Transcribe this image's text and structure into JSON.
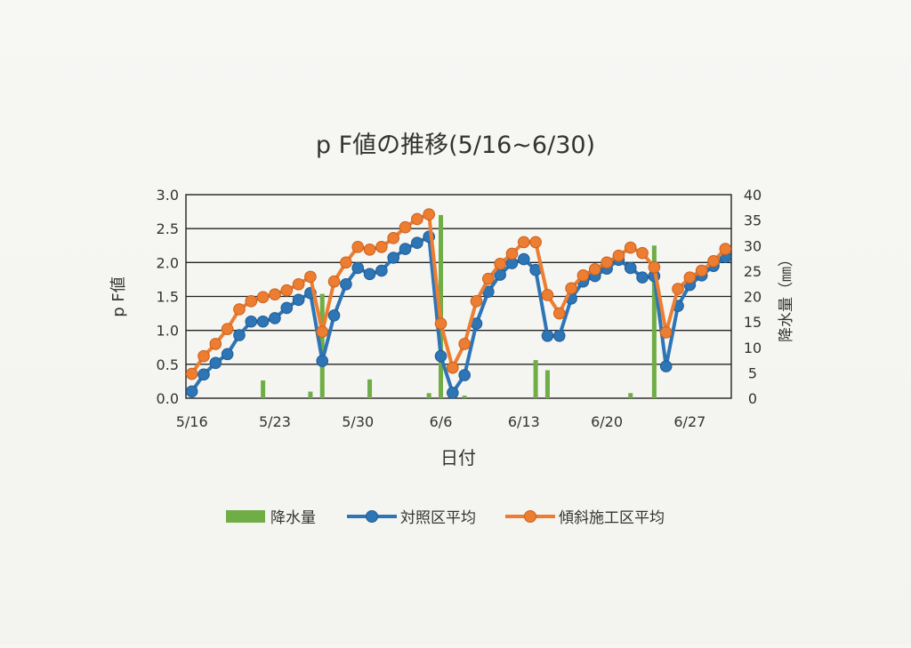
{
  "chart_data": {
    "type": "bar+line",
    "title": "p F値の推移(5/16~6/30)",
    "xlabel": "日付",
    "ylabel_left": "p F値",
    "ylabel_right": "降水量（㎜）",
    "ylim_left": [
      0,
      3.0
    ],
    "ylim_right": [
      0,
      40
    ],
    "yticks_left": [
      "0.0",
      "0.5",
      "1.0",
      "1.5",
      "2.0",
      "2.5",
      "3.0"
    ],
    "yticks_right": [
      "0",
      "5",
      "10",
      "15",
      "20",
      "25",
      "30",
      "35",
      "40"
    ],
    "x_tick_labels": [
      "5/16",
      "5/23",
      "5/30",
      "6/6",
      "6/13",
      "6/20",
      "6/27"
    ],
    "dates": [
      "5/16",
      "5/17",
      "5/18",
      "5/19",
      "5/20",
      "5/21",
      "5/22",
      "5/23",
      "5/24",
      "5/25",
      "5/26",
      "5/27",
      "5/28",
      "5/29",
      "5/30",
      "5/31",
      "6/1",
      "6/2",
      "6/3",
      "6/4",
      "6/5",
      "6/6",
      "6/7",
      "6/8",
      "6/9",
      "6/10",
      "6/11",
      "6/12",
      "6/13",
      "6/14",
      "6/15",
      "6/16",
      "6/17",
      "6/18",
      "6/19",
      "6/20",
      "6/21",
      "6/22",
      "6/23",
      "6/24",
      "6/25",
      "6/26",
      "6/27",
      "6/28",
      "6/29",
      "6/30"
    ],
    "grid": true,
    "legend_position": "bottom",
    "series": [
      {
        "name": "降水量",
        "type": "bar",
        "axis": "right",
        "color": "#70ad47",
        "values": [
          0,
          0,
          0,
          0,
          0,
          0,
          3.5,
          0,
          0,
          0,
          1.3,
          20.5,
          0,
          0,
          0,
          3.7,
          0,
          0,
          0,
          0,
          1,
          36,
          0,
          0.5,
          0,
          0,
          0,
          0,
          0,
          7.5,
          5.5,
          0,
          0,
          0,
          0,
          0,
          0,
          1,
          0,
          30,
          0,
          0,
          0,
          0,
          0,
          0
        ]
      },
      {
        "name": "対照区平均",
        "type": "line",
        "axis": "left",
        "color": "#2e75b6",
        "values": [
          0.1,
          0.35,
          0.52,
          0.65,
          0.93,
          1.13,
          1.13,
          1.18,
          1.33,
          1.45,
          1.55,
          0.55,
          1.22,
          1.68,
          1.92,
          1.83,
          1.88,
          2.07,
          2.2,
          2.29,
          2.38,
          0.62,
          0.08,
          0.34,
          1.1,
          1.57,
          1.82,
          1.99,
          2.05,
          1.89,
          0.92,
          0.92,
          1.47,
          1.72,
          1.8,
          1.91,
          2.04,
          1.92,
          1.78,
          1.8,
          0.47,
          1.36,
          1.67,
          1.81,
          1.95,
          2.08
        ]
      },
      {
        "name": "傾斜施工区平均",
        "type": "line",
        "axis": "left",
        "color": "#ed7d31",
        "values": [
          0.36,
          0.62,
          0.8,
          1.02,
          1.31,
          1.43,
          1.49,
          1.53,
          1.59,
          1.68,
          1.79,
          0.98,
          1.72,
          2.0,
          2.23,
          2.19,
          2.23,
          2.36,
          2.52,
          2.64,
          2.71,
          1.1,
          0.45,
          0.8,
          1.43,
          1.76,
          1.98,
          2.13,
          2.3,
          2.3,
          1.52,
          1.25,
          1.62,
          1.81,
          1.9,
          2.0,
          2.1,
          2.22,
          2.14,
          1.93,
          0.97,
          1.61,
          1.78,
          1.88,
          2.02,
          2.2
        ]
      }
    ]
  }
}
